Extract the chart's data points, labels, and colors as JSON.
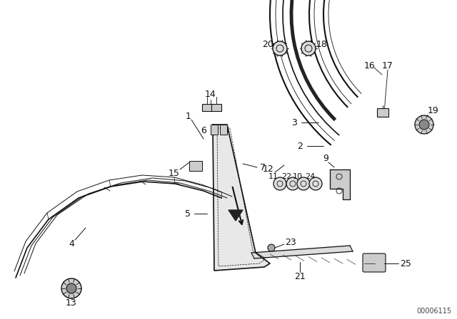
{
  "background_color": "#ffffff",
  "diagram_code": "00006115",
  "line_color": "#111111",
  "label_fontsize": 9
}
